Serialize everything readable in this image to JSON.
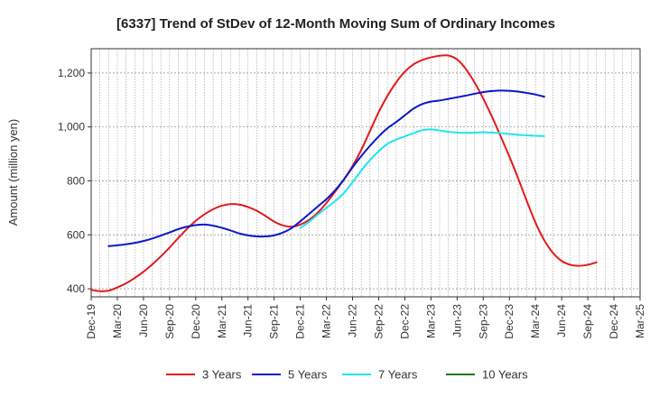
{
  "chart_data": {
    "type": "line",
    "title": "[6337]  Trend of StDev of 12-Month Moving Sum of Ordinary Incomes",
    "xlabel": "",
    "ylabel": "Amount (million yen)",
    "ylim": [
      370,
      1290
    ],
    "yticks": [
      400,
      600,
      800,
      1000,
      1200
    ],
    "ytick_labels": [
      "400",
      "600",
      "800",
      "1,000",
      "1,200"
    ],
    "x_count": 64,
    "xticks": [
      0,
      3,
      6,
      9,
      12,
      15,
      18,
      21,
      24,
      27,
      30,
      33,
      36,
      39,
      42,
      45,
      48,
      51,
      54,
      57,
      60,
      63
    ],
    "xtick_labels": [
      "Dec-19",
      "Mar-20",
      "Jun-20",
      "Sep-20",
      "Dec-20",
      "Mar-21",
      "Jun-21",
      "Sep-21",
      "Dec-21",
      "Mar-22",
      "Jun-22",
      "Sep-22",
      "Dec-22",
      "Mar-23",
      "Jun-23",
      "Sep-23",
      "Dec-23",
      "Mar-24",
      "Jun-24",
      "Sep-24",
      "Dec-24",
      "Mar-25"
    ],
    "grid": true,
    "legend_position": "bottom",
    "series": [
      {
        "name": "3 Years",
        "color": "#e31a1c",
        "start_index": 0,
        "values": [
          396,
          391,
          393,
          405,
          420,
          440,
          463,
          490,
          520,
          553,
          588,
          622,
          652,
          676,
          695,
          708,
          714,
          712,
          703,
          689,
          670,
          649,
          635,
          630,
          638,
          655,
          682,
          718,
          760,
          805,
          855,
          915,
          985,
          1055,
          1115,
          1165,
          1205,
          1232,
          1248,
          1258,
          1264,
          1265,
          1250,
          1215,
          1165,
          1105,
          1038,
          965,
          890,
          810,
          725,
          645,
          580,
          533,
          503,
          489,
          485,
          489,
          498
        ]
      },
      {
        "name": "5 Years",
        "color": "#0a18c8",
        "start_index": 2,
        "values": [
          558,
          561,
          565,
          570,
          577,
          586,
          597,
          609,
          621,
          630,
          636,
          638,
          634,
          626,
          616,
          605,
          598,
          594,
          594,
          598,
          608,
          625,
          650,
          677,
          705,
          732,
          765,
          805,
          850,
          892,
          930,
          965,
          995,
          1018,
          1043,
          1068,
          1085,
          1094,
          1098,
          1104,
          1110,
          1116,
          1123,
          1129,
          1133,
          1135,
          1134,
          1131,
          1126,
          1120,
          1112
        ]
      },
      {
        "name": "7 Years",
        "color": "#1ee6ee",
        "start_index": 24,
        "values": [
          625,
          648,
          675,
          700,
          725,
          755,
          795,
          838,
          877,
          910,
          937,
          953,
          965,
          977,
          988,
          991,
          987,
          982,
          979,
          978,
          979,
          980,
          979,
          977,
          974,
          971,
          969,
          967,
          966
        ]
      },
      {
        "name": "10 Years",
        "color": "#1a7a1a",
        "start_index": 0,
        "values": []
      }
    ]
  }
}
